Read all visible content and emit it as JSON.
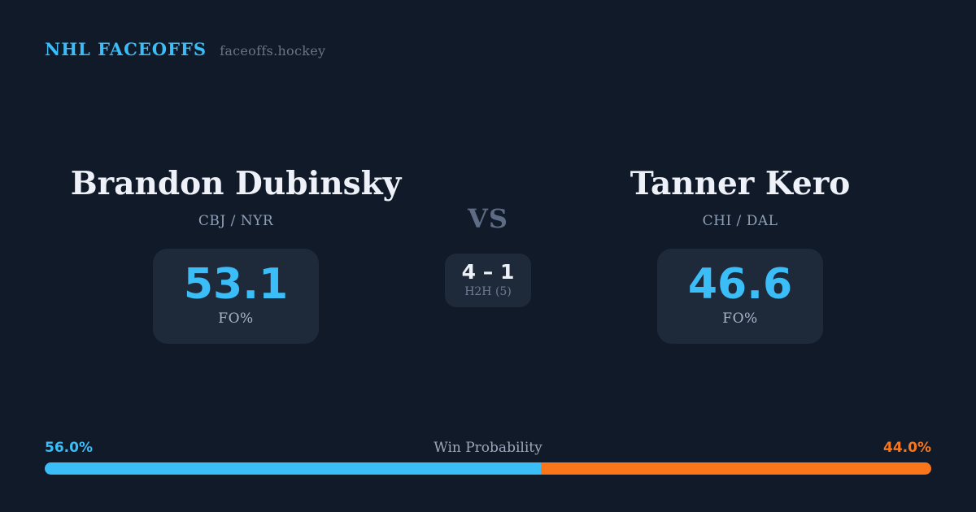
{
  "brand": {
    "title": "NHL FACEOFFS",
    "domain": "faceoffs.hockey"
  },
  "players": {
    "left": {
      "name": "Brandon Dubinsky",
      "teams": "CBJ / NYR",
      "fo_pct": "53.1",
      "fo_label": "FO%"
    },
    "right": {
      "name": "Tanner Kero",
      "teams": "CHI / DAL",
      "fo_pct": "46.6",
      "fo_label": "FO%"
    }
  },
  "versus": {
    "label": "VS",
    "h2h_score": "4 – 1",
    "h2h_label": "H2H (5)"
  },
  "win_probability": {
    "title": "Win Probability",
    "left_pct_label": "56.0%",
    "right_pct_label": "44.0%",
    "left_value": 56.0,
    "right_value": 44.0,
    "left_width": "56%",
    "right_width": "44%",
    "left_color": "#3bbdf8",
    "right_color": "#f9761a"
  },
  "colors": {
    "background": "#111a29",
    "box_background": "#1e2a3a",
    "accent_blue": "#3bbdf8",
    "accent_orange": "#f9761a",
    "text_primary": "#eef2f8",
    "text_muted": "#8fa0b6"
  }
}
